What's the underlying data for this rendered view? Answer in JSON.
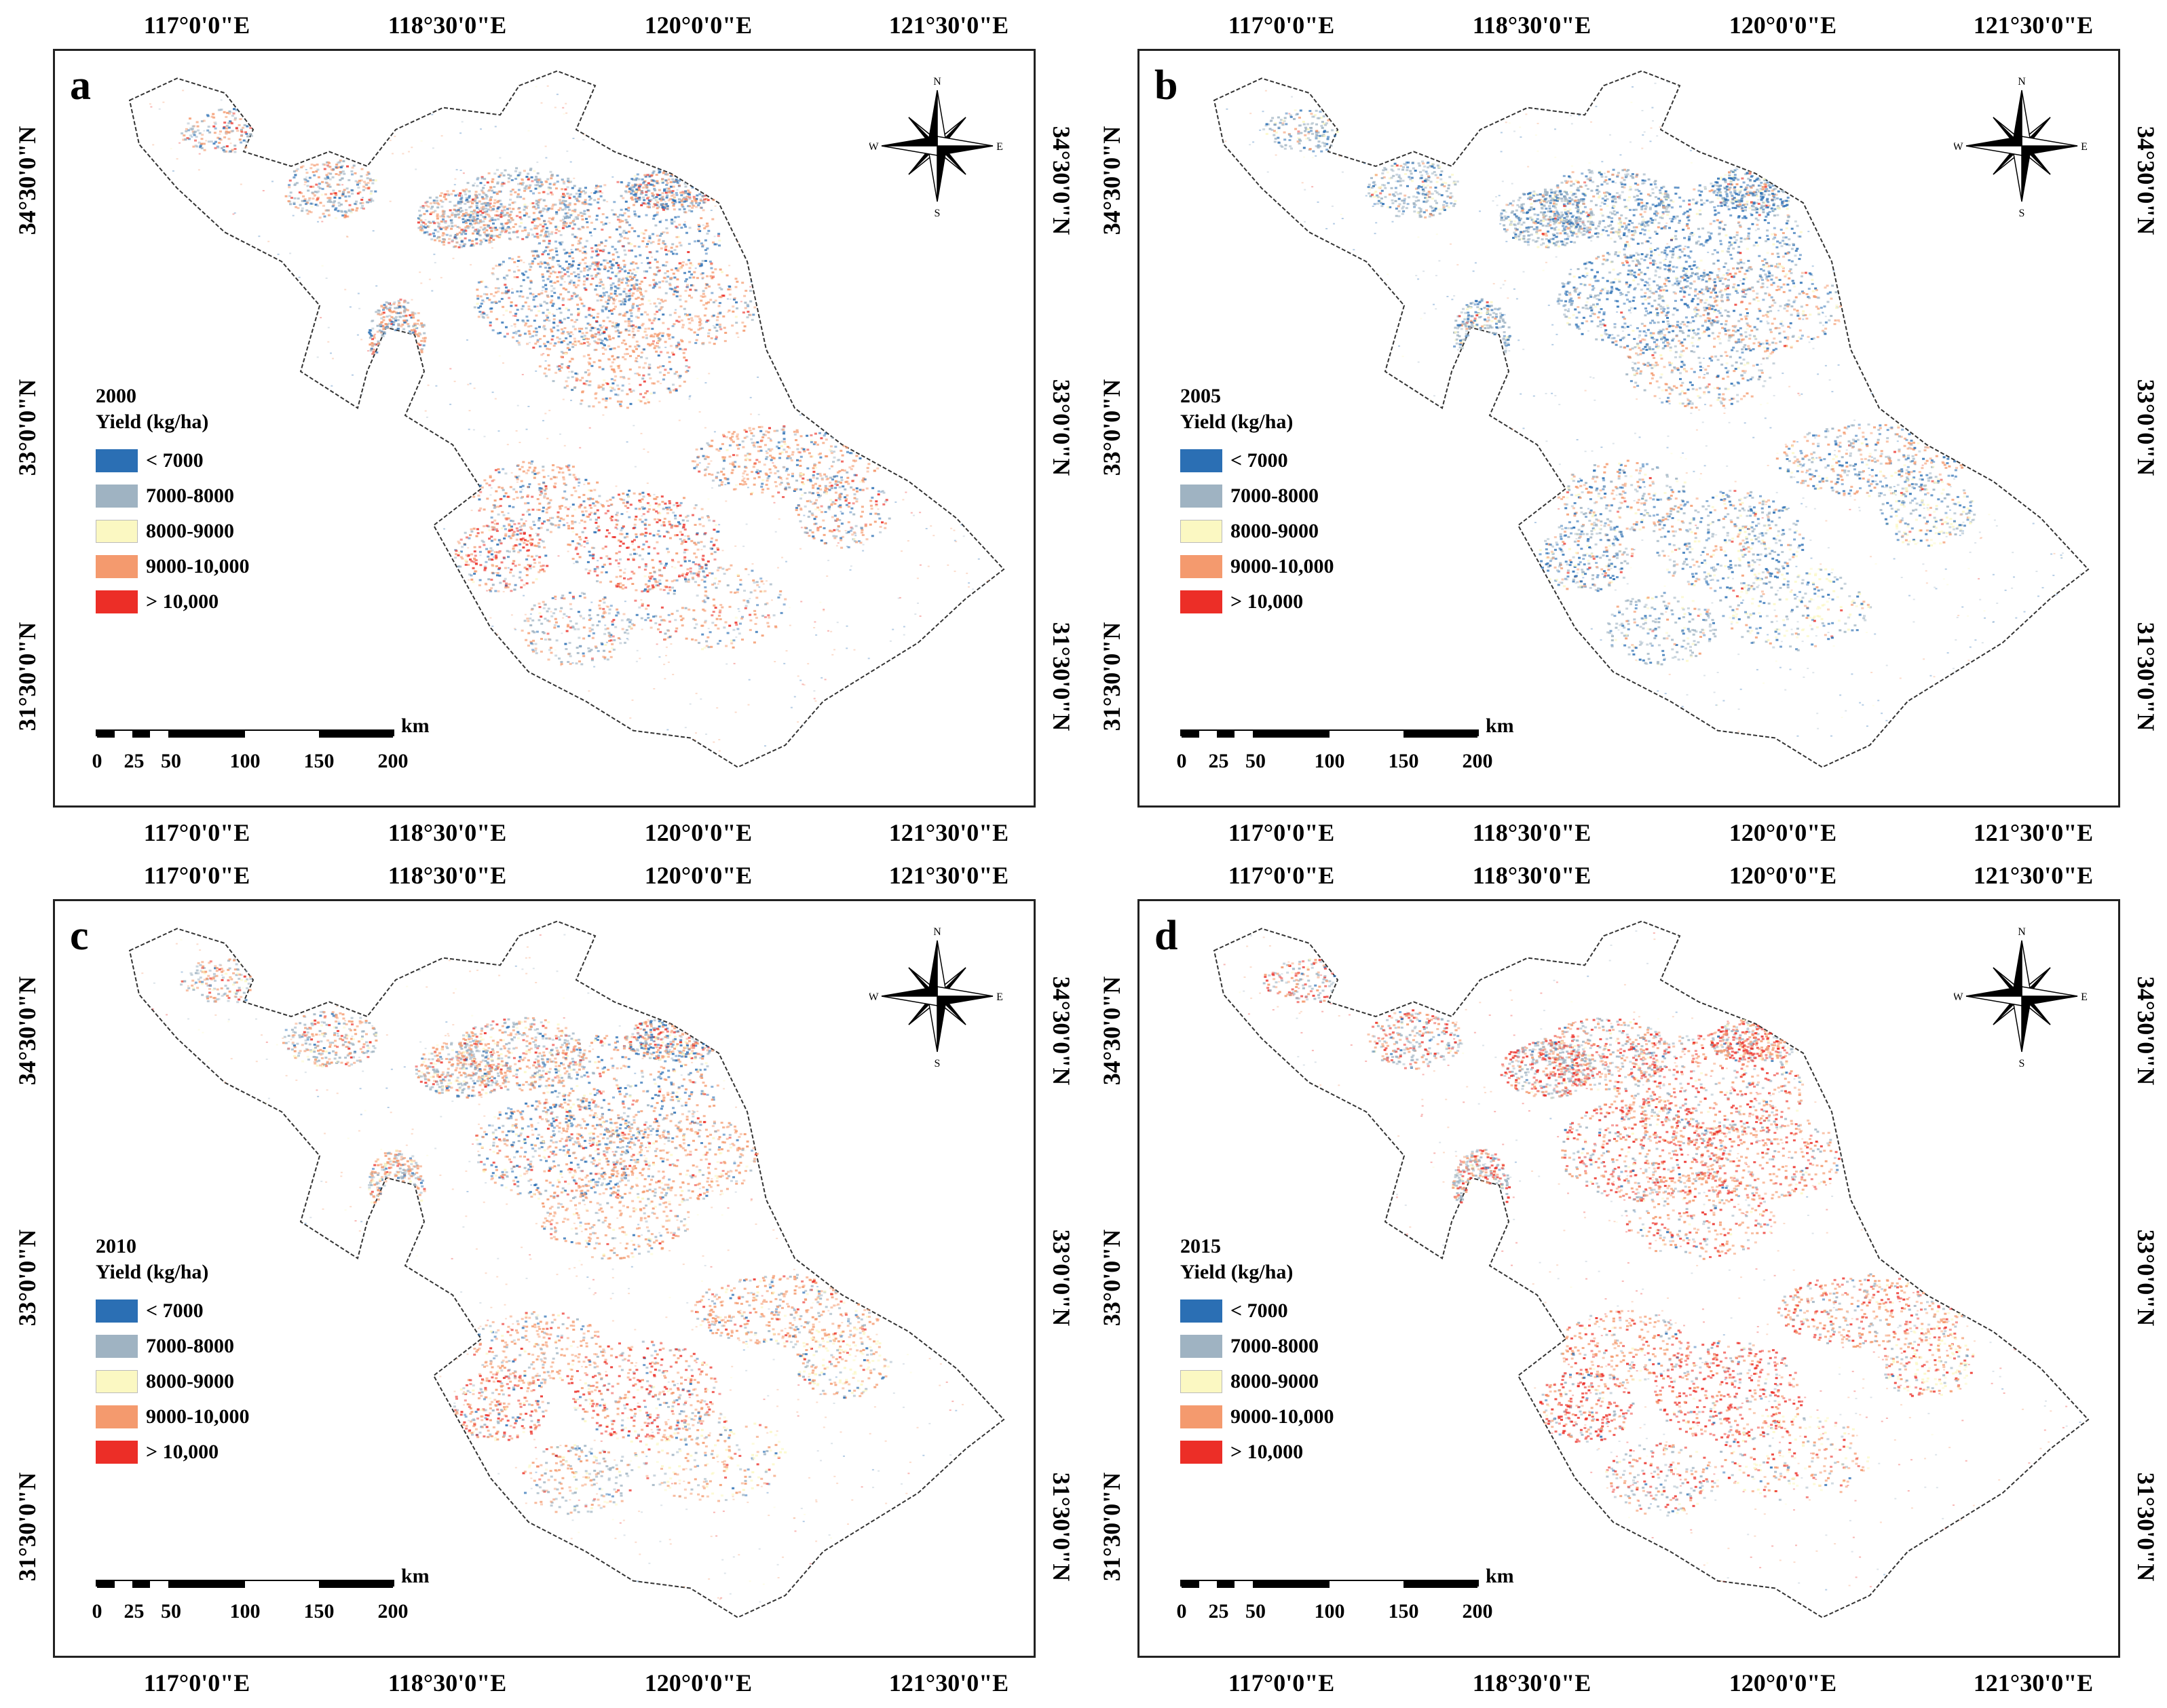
{
  "figure": {
    "lon_ticks": [
      "117°0'0\"E",
      "118°30'0\"E",
      "120°0'0\"E",
      "121°30'0\"E"
    ],
    "lat_ticks": [
      "34°30'0\"N",
      "33°0'0\"N",
      "31°30'0\"N"
    ],
    "legend_title": "Yield (kg/ha)",
    "legend_classes": [
      {
        "label": "< 7000",
        "color": "#2b6fb4"
      },
      {
        "label": "7000-8000",
        "color": "#9fb3c2"
      },
      {
        "label": "8000-9000",
        "color": "#fbf8c2"
      },
      {
        "label": "9000-10,000",
        "color": "#f49a6e"
      },
      {
        "label": "> 10,000",
        "color": "#ec2e27"
      }
    ],
    "scale": {
      "ticks": [
        "0",
        "25",
        "50",
        "100",
        "150",
        "200"
      ],
      "unit": "km"
    },
    "compass": {
      "n": "N",
      "s": "S",
      "e": "E",
      "w": "W"
    }
  },
  "panels": [
    {
      "letter": "a",
      "year": "2000",
      "class_mix": {
        "< 7000": 0.22,
        "7000-8000": 0.2,
        "8000-9000": 0.03,
        "9000-10,000": 0.45,
        "> 10,000": 0.1
      }
    },
    {
      "letter": "b",
      "year": "2005",
      "class_mix": {
        "< 7000": 0.35,
        "7000-8000": 0.38,
        "8000-9000": 0.12,
        "9000-10,000": 0.13,
        "> 10,000": 0.02
      }
    },
    {
      "letter": "c",
      "year": "2010",
      "class_mix": {
        "< 7000": 0.08,
        "7000-8000": 0.2,
        "8000-9000": 0.12,
        "9000-10,000": 0.5,
        "> 10,000": 0.1
      }
    },
    {
      "letter": "d",
      "year": "2015",
      "class_mix": {
        "< 7000": 0.03,
        "7000-8000": 0.22,
        "8000-9000": 0.05,
        "9000-10,000": 0.35,
        "> 10,000": 0.35
      }
    }
  ]
}
